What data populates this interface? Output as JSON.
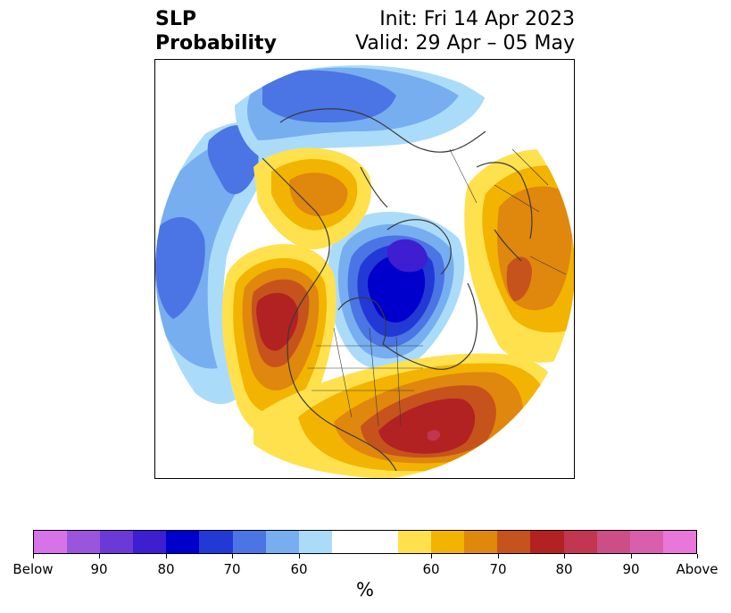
{
  "title": {
    "left_line1": "SLP",
    "left_line2": "Probability",
    "right_line1": "Init: Fri 14 Apr 2023",
    "right_line2": "Valid: 29 Apr – 05 May"
  },
  "map": {
    "projection": "north-polar-stereographic",
    "features": [
      "blue-below-normal-arctic-anomaly",
      "red-above-normal-western-north-america",
      "red-above-normal-eastern-north-america",
      "orange-above-normal-siberia",
      "blue-below-normal-north-pacific"
    ]
  },
  "colorbar": {
    "unit_label": "%",
    "colors": [
      "#d673e8",
      "#9a55dd",
      "#6a39d6",
      "#3d1ed0",
      "#0000cc",
      "#2339d6",
      "#4b74e4",
      "#76aef0",
      "#aadcfa",
      "#ffffff",
      "#ffe14d",
      "#f2b400",
      "#e0870e",
      "#c6531b",
      "#b22222",
      "#c23652",
      "#cb4f86",
      "#d95fad",
      "#e877d9"
    ],
    "tick_labels": [
      "Below",
      "90",
      "80",
      "70",
      "60",
      "60",
      "70",
      "80",
      "90",
      "Above"
    ]
  }
}
